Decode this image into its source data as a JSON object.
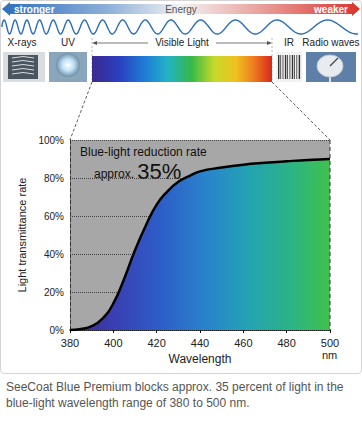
{
  "header": {
    "energy": {
      "left": "stronger",
      "center": "Energy",
      "right": "weaker"
    },
    "bands": [
      "X-rays",
      "UV",
      "Visible Light",
      "IR",
      "Radio waves"
    ]
  },
  "chart_data": {
    "type": "line",
    "x": [
      380,
      385,
      390,
      395,
      400,
      405,
      410,
      415,
      420,
      425,
      430,
      435,
      440,
      450,
      460,
      470,
      480,
      490,
      500
    ],
    "values": [
      0,
      0.5,
      2,
      6,
      14,
      27,
      42,
      55,
      66,
      73,
      78,
      81,
      83.5,
      85.5,
      87,
      88,
      88.8,
      89.5,
      90
    ],
    "xlabel": "Wavelength",
    "x_unit": "nm",
    "ylabel": "Light transmittance rate",
    "xlim": [
      380,
      500
    ],
    "xticks": [
      380,
      400,
      420,
      440,
      460,
      480,
      500
    ],
    "ylim": [
      0,
      100
    ],
    "yticks": [
      {
        "value": 0,
        "label": "0%"
      },
      {
        "value": 20,
        "label": "20%"
      },
      {
        "value": 40,
        "label": "40%"
      },
      {
        "value": 60,
        "label": "60%"
      },
      {
        "value": 80,
        "label": "80%"
      },
      {
        "value": 100,
        "label": "100%"
      }
    ],
    "grid": true,
    "annotations": [
      "Blue-light reduction rate",
      "approx.",
      "35%"
    ]
  },
  "caption": "SeeCoat Blue Premium blocks approx. 35 percent of light in the blue-light wavelength range of 380 to 500 nm."
}
